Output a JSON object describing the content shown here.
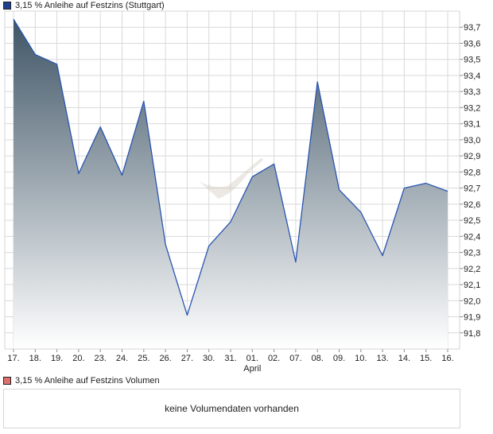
{
  "price_legend": {
    "label": "3,15 % Anleihe auf Festzins (Stuttgart)",
    "color": "#1f3f8f"
  },
  "volume_legend": {
    "label": "3,15 % Anleihe auf Festzins Volumen",
    "color": "#e07070"
  },
  "volume_empty_text": "keine Volumendaten vorhanden",
  "colors": {
    "line": "#2a55b0",
    "area_top": "#3f5566",
    "area_bottom": "#ffffff",
    "grid": "#d9d9d9"
  },
  "chart_data": {
    "type": "area",
    "categories": [
      "17.",
      "18.",
      "19.",
      "20.",
      "23.",
      "24.",
      "25.",
      "26.",
      "27.",
      "30.",
      "31.",
      "01.",
      "02.",
      "07.",
      "08.",
      "09.",
      "10.",
      "13.",
      "14.",
      "15.",
      "16."
    ],
    "month_label": "April",
    "month_label_under": "01.",
    "values": [
      93.75,
      93.53,
      93.47,
      92.79,
      93.08,
      92.78,
      93.24,
      92.35,
      91.91,
      92.34,
      92.49,
      92.77,
      92.85,
      92.24,
      93.36,
      92.69,
      92.55,
      92.28,
      92.7,
      92.73,
      92.68
    ],
    "y_ticks": [
      "91,8",
      "91,9",
      "92,0",
      "92,1",
      "92,2",
      "92,3",
      "92,4",
      "92,5",
      "92,6",
      "92,7",
      "92,8",
      "92,9",
      "93,0",
      "93,1",
      "93,2",
      "93,3",
      "93,4",
      "93,5",
      "93,6",
      "93,7"
    ],
    "ylim": [
      91.7,
      93.8
    ],
    "grid": true
  }
}
